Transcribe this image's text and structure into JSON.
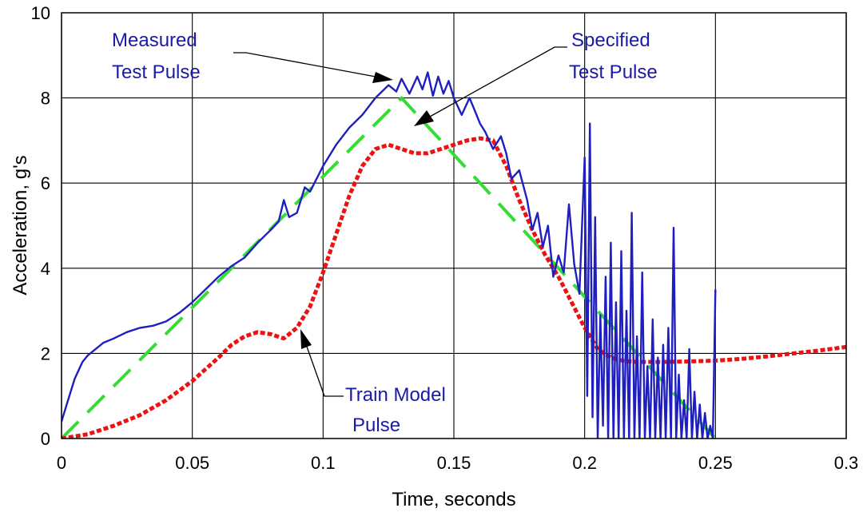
{
  "chart_data": {
    "type": "line",
    "title": "",
    "xlabel": "Time, seconds",
    "ylabel": "Acceleration, g's",
    "xlim": [
      0,
      0.3
    ],
    "ylim": [
      0,
      10
    ],
    "xticks": [
      0,
      0.05,
      0.1,
      0.15,
      0.2,
      0.25,
      0.3
    ],
    "yticks": [
      0,
      2,
      4,
      6,
      8,
      10
    ],
    "xtick_labels": [
      "0",
      "0.05",
      "0.1",
      "0.15",
      "0.2",
      "0.25",
      "0.3"
    ],
    "ytick_labels": [
      "0",
      "2",
      "4",
      "6",
      "8",
      "10"
    ],
    "grid": true,
    "legend": "none (inline annotations with arrows)",
    "colors": {
      "measured": "#1f1fbf",
      "specified": "#33dd33",
      "train": "#ee1111",
      "annotation_text": "#1a1aa6"
    },
    "series": [
      {
        "name": "Measured Test Pulse",
        "style": "solid",
        "x": [
          0,
          0.002,
          0.005,
          0.008,
          0.01,
          0.013,
          0.016,
          0.02,
          0.025,
          0.03,
          0.035,
          0.04,
          0.045,
          0.05,
          0.055,
          0.06,
          0.065,
          0.07,
          0.075,
          0.08,
          0.083,
          0.085,
          0.087,
          0.09,
          0.093,
          0.095,
          0.1,
          0.105,
          0.11,
          0.115,
          0.12,
          0.125,
          0.128,
          0.13,
          0.133,
          0.136,
          0.138,
          0.14,
          0.142,
          0.144,
          0.146,
          0.148,
          0.15,
          0.153,
          0.156,
          0.158,
          0.16,
          0.162,
          0.165,
          0.168,
          0.17,
          0.172,
          0.175,
          0.178,
          0.18,
          0.182,
          0.184,
          0.186,
          0.188,
          0.19,
          0.192,
          0.194,
          0.196,
          0.198,
          0.2,
          0.201,
          0.202,
          0.203,
          0.204,
          0.205,
          0.206,
          0.207,
          0.208,
          0.209,
          0.21,
          0.211,
          0.212,
          0.213,
          0.214,
          0.215,
          0.216,
          0.217,
          0.218,
          0.219,
          0.22,
          0.221,
          0.222,
          0.223,
          0.224,
          0.225,
          0.226,
          0.227,
          0.228,
          0.229,
          0.23,
          0.231,
          0.232,
          0.233,
          0.234,
          0.235,
          0.236,
          0.237,
          0.238,
          0.239,
          0.24,
          0.241,
          0.242,
          0.243,
          0.244,
          0.245,
          0.246,
          0.247,
          0.248,
          0.249,
          0.25
        ],
        "y": [
          0.4,
          0.8,
          1.4,
          1.8,
          1.95,
          2.1,
          2.25,
          2.35,
          2.5,
          2.6,
          2.65,
          2.75,
          2.95,
          3.2,
          3.5,
          3.8,
          4.05,
          4.25,
          4.6,
          4.9,
          5.1,
          5.6,
          5.2,
          5.3,
          5.9,
          5.8,
          6.4,
          6.9,
          7.3,
          7.6,
          8.0,
          8.3,
          8.15,
          8.45,
          8.1,
          8.5,
          8.2,
          8.6,
          8.05,
          8.5,
          8.1,
          8.4,
          8.0,
          7.6,
          8.0,
          7.7,
          7.4,
          7.2,
          6.8,
          7.1,
          6.7,
          6.1,
          6.3,
          5.6,
          4.9,
          5.3,
          4.5,
          5.0,
          3.8,
          4.3,
          3.9,
          5.5,
          4.1,
          3.4,
          6.6,
          1.0,
          7.4,
          0.5,
          5.2,
          0.0,
          2.9,
          0.3,
          3.8,
          0.0,
          4.6,
          0.0,
          3.2,
          0.0,
          4.4,
          0.0,
          3.0,
          0.0,
          5.3,
          0.0,
          2.4,
          0.0,
          3.9,
          0.0,
          1.7,
          0.0,
          2.8,
          0.0,
          1.9,
          0.0,
          2.2,
          0.0,
          2.6,
          0.0,
          4.95,
          0.0,
          1.5,
          0.0,
          0.9,
          0.0,
          2.1,
          0.0,
          1.1,
          0.0,
          0.8,
          0.0,
          0.6,
          0.0,
          0.3,
          0.0,
          3.5
        ]
      },
      {
        "name": "Specified Test Pulse",
        "style": "dashed",
        "x": [
          0,
          0.13,
          0.25
        ],
        "y": [
          0,
          8.0,
          0
        ]
      },
      {
        "name": "Train Model Pulse",
        "style": "dotted",
        "x": [
          0,
          0.01,
          0.02,
          0.03,
          0.04,
          0.05,
          0.06,
          0.065,
          0.07,
          0.075,
          0.08,
          0.085,
          0.09,
          0.095,
          0.1,
          0.105,
          0.11,
          0.115,
          0.12,
          0.125,
          0.13,
          0.135,
          0.14,
          0.145,
          0.15,
          0.155,
          0.16,
          0.165,
          0.17,
          0.175,
          0.18,
          0.185,
          0.19,
          0.195,
          0.2,
          0.205,
          0.21,
          0.215,
          0.22,
          0.23,
          0.24,
          0.25,
          0.26,
          0.27,
          0.28,
          0.29,
          0.3
        ],
        "y": [
          0,
          0.1,
          0.3,
          0.55,
          0.9,
          1.35,
          1.9,
          2.2,
          2.4,
          2.5,
          2.45,
          2.35,
          2.6,
          3.1,
          3.9,
          4.8,
          5.7,
          6.4,
          6.8,
          6.9,
          6.8,
          6.7,
          6.7,
          6.8,
          6.9,
          7.0,
          7.05,
          7.0,
          6.4,
          5.6,
          4.9,
          4.3,
          3.8,
          3.2,
          2.6,
          2.1,
          1.9,
          1.82,
          1.8,
          1.8,
          1.81,
          1.83,
          1.87,
          1.93,
          2.0,
          2.07,
          2.15
        ]
      }
    ],
    "annotations": [
      {
        "lines": [
          "Measured",
          "Test Pulse"
        ]
      },
      {
        "lines": [
          "Specified",
          "Test Pulse"
        ]
      },
      {
        "lines": [
          "Train Model",
          "Pulse"
        ]
      }
    ]
  }
}
